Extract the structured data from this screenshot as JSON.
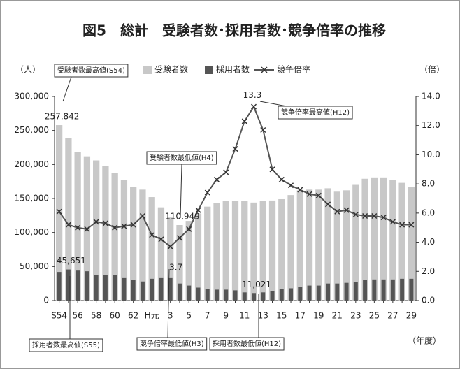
{
  "chart_data": {
    "type": "bar-line",
    "title": "図5　総計　受験者数･採用者数･競争倍率の推移",
    "y_label": "（人）",
    "y2_label": "（倍）",
    "x_label": "（年度）",
    "categories": [
      "S54",
      null,
      "56",
      null,
      "58",
      null,
      "60",
      null,
      "62",
      null,
      "H元",
      null,
      "3",
      null,
      "5",
      null,
      "7",
      null,
      "9",
      null,
      "11",
      null,
      "13",
      null,
      "15",
      null,
      "17",
      null,
      "19",
      null,
      "21",
      null,
      "23",
      null,
      "25",
      null,
      "27",
      null,
      "29"
    ],
    "series": [
      {
        "name": "受験者数",
        "type": "bar",
        "color": "#c8c8c8",
        "values": [
          257842,
          239000,
          218000,
          212000,
          206000,
          198000,
          188000,
          177000,
          167000,
          163000,
          152000,
          137000,
          122000,
          110949,
          117000,
          128000,
          138000,
          143000,
          146000,
          146000,
          146000,
          144000,
          146000,
          147000,
          149000,
          155000,
          162000,
          163000,
          163000,
          165000,
          160000,
          162000,
          170000,
          179000,
          181000,
          181000,
          177000,
          173000,
          167000
        ],
        "value_labels": [
          "257,842",
          null,
          null,
          null,
          null,
          null,
          null,
          null,
          null,
          null,
          null,
          null,
          null,
          "110,949",
          null,
          null,
          null,
          null,
          null,
          null,
          null,
          null,
          null,
          null,
          null,
          null,
          null,
          null,
          null,
          null,
          null,
          null,
          null,
          null,
          null,
          null,
          null,
          null,
          null
        ]
      },
      {
        "name": "採用者数",
        "type": "bar",
        "color": "#555555",
        "values": [
          42000,
          45651,
          44000,
          43000,
          38000,
          37000,
          37000,
          33000,
          30000,
          28000,
          32000,
          33000,
          33000,
          25000,
          22000,
          19000,
          17000,
          16000,
          16000,
          15000,
          12000,
          11021,
          12000,
          14000,
          17000,
          18000,
          20000,
          22000,
          22000,
          25000,
          25000,
          26000,
          27000,
          30000,
          31000,
          31000,
          31000,
          32000,
          32000
        ],
        "value_labels": [
          null,
          "45,651",
          null,
          null,
          null,
          null,
          null,
          null,
          null,
          null,
          null,
          null,
          null,
          null,
          null,
          null,
          null,
          null,
          null,
          null,
          null,
          "11,021",
          null,
          null,
          null,
          null,
          null,
          null,
          null,
          null,
          null,
          null,
          null,
          null,
          null,
          null,
          null,
          null,
          null
        ]
      },
      {
        "name": "競争倍率",
        "type": "line",
        "axis": "y2",
        "color": "#555555",
        "values": [
          6.1,
          5.2,
          5.0,
          4.9,
          5.4,
          5.3,
          5.0,
          5.1,
          5.2,
          5.8,
          4.5,
          4.2,
          3.7,
          4.3,
          4.9,
          6.2,
          7.4,
          8.3,
          8.8,
          10.4,
          12.3,
          13.3,
          11.7,
          9.0,
          8.3,
          7.9,
          7.6,
          7.3,
          7.2,
          6.6,
          6.1,
          6.2,
          5.9,
          5.8,
          5.8,
          5.7,
          5.4,
          5.2,
          5.2
        ]
      }
    ],
    "ylim": [
      0,
      300000
    ],
    "yticks": [
      0,
      {
        "value": 50000,
        "label": "50,000"
      },
      {
        "value": 100000,
        "label": "100,000"
      },
      {
        "value": 150000,
        "label": "150,000"
      },
      {
        "value": 200000,
        "label": "200,000"
      },
      {
        "value": 250000,
        "label": "250,000"
      },
      {
        "value": 300000,
        "label": "300,000"
      }
    ],
    "y2lim": [
      0,
      14
    ],
    "y2ticks": [
      {
        "value": 0,
        "label": "0.0"
      },
      {
        "value": 2,
        "label": "2.0"
      },
      {
        "value": 4,
        "label": "4.0"
      },
      {
        "value": 6,
        "label": "6.0"
      },
      {
        "value": 8,
        "label": "8.0"
      },
      {
        "value": 10,
        "label": "10.0"
      },
      {
        "value": 12,
        "label": "12.0"
      },
      {
        "value": 14,
        "label": "14.0"
      }
    ],
    "annotations": [
      "受験者数最高値(S54)",
      "受験者数最低値(H4)",
      "競争倍率最高値(H12)",
      "競争倍率最低値(H3)",
      "採用者数最高値(S55)",
      "採用者数最低値(H12)"
    ]
  }
}
